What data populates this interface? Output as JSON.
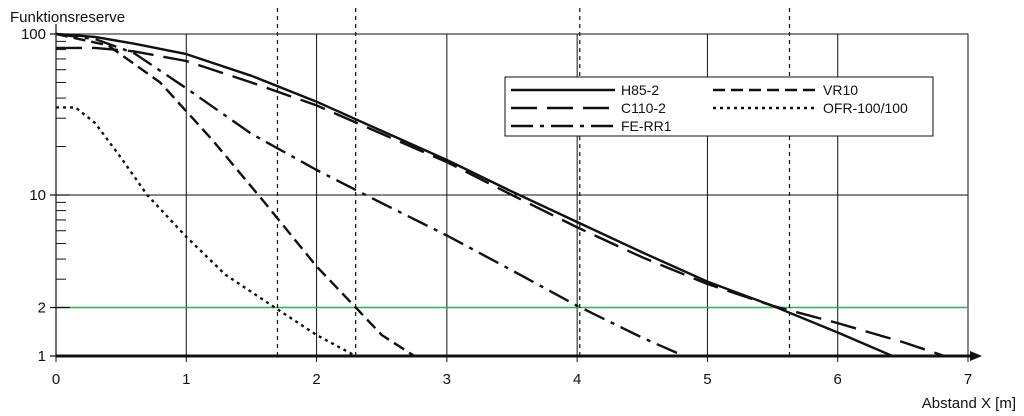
{
  "chart_data": {
    "type": "line",
    "ylabel": "Funktionsreserve",
    "xlabel": "Abstand X [m]",
    "xlim": [
      0,
      7
    ],
    "ylim": [
      1,
      100
    ],
    "y_scale": "log",
    "x_ticks": [
      0,
      1,
      2,
      3,
      4,
      5,
      6,
      7
    ],
    "x_tick_labels": [
      "0",
      "1",
      "2",
      "3",
      "4",
      "5",
      "6",
      "7"
    ],
    "y_ticks": [
      1,
      2,
      10,
      100
    ],
    "y_tick_labels": [
      "1",
      "2",
      "10",
      "100"
    ],
    "grid": true,
    "legend_position": "top-right",
    "reference_lines": [
      {
        "axis": "y",
        "value": 2,
        "color": "#2db24a",
        "style": "solid"
      },
      {
        "axis": "x",
        "value": 1.7,
        "color": "#111111",
        "style": "dotted"
      },
      {
        "axis": "x",
        "value": 2.3,
        "color": "#111111",
        "style": "dotted"
      },
      {
        "axis": "x",
        "value": 4.02,
        "color": "#111111",
        "style": "dotted"
      },
      {
        "axis": "x",
        "value": 5.63,
        "color": "#111111",
        "style": "dotted"
      }
    ],
    "series": [
      {
        "name": "H85-2",
        "style": "solid",
        "color": "#111111",
        "x": [
          0,
          0.3,
          0.6,
          1,
          1.5,
          2,
          2.5,
          3,
          3.5,
          4,
          4.5,
          5,
          5.5,
          6,
          6.42
        ],
        "y": [
          100,
          96,
          87,
          75,
          55,
          38,
          25,
          16.5,
          10.5,
          6.8,
          4.4,
          2.9,
          2.05,
          1.4,
          1
        ]
      },
      {
        "name": "VR10",
        "style": "dash",
        "color": "#111111",
        "x": [
          0,
          0.4,
          0.8,
          1.2,
          1.6,
          2,
          2.3,
          2.5,
          2.75
        ],
        "y": [
          100,
          85,
          50,
          22,
          9,
          3.6,
          2,
          1.35,
          1
        ]
      },
      {
        "name": "C110-2",
        "style": "longdash",
        "color": "#111111",
        "x": [
          0,
          0.3,
          0.6,
          1,
          1.5,
          2,
          2.5,
          3,
          3.5,
          4,
          4.5,
          5,
          5.5,
          6,
          6.5,
          6.82
        ],
        "y": [
          82,
          82,
          78,
          68,
          50,
          36,
          24,
          16,
          10,
          6.3,
          4.1,
          2.8,
          2.05,
          1.6,
          1.22,
          1
        ]
      },
      {
        "name": "OFR-100/100",
        "style": "dot",
        "color": "#111111",
        "x": [
          0,
          0.15,
          0.3,
          0.5,
          0.7,
          1,
          1.3,
          1.7,
          2,
          2.3
        ],
        "y": [
          35,
          35,
          28,
          17,
          10,
          5.5,
          3.2,
          1.95,
          1.35,
          1
        ]
      },
      {
        "name": "FE-RR1",
        "style": "dashdot",
        "color": "#111111",
        "x": [
          0,
          0.3,
          0.6,
          1,
          1.5,
          2,
          2.5,
          3,
          3.5,
          4,
          4.5,
          4.82
        ],
        "y": [
          100,
          93,
          76,
          46,
          24,
          14.3,
          8.9,
          5.6,
          3.4,
          2.05,
          1.3,
          1
        ]
      }
    ],
    "legend": [
      {
        "name": "H85-2",
        "style": "solid"
      },
      {
        "name": "VR10",
        "style": "dash"
      },
      {
        "name": "C110-2",
        "style": "longdash"
      },
      {
        "name": "OFR-100/100",
        "style": "dot"
      },
      {
        "name": "FE-RR1",
        "style": "dashdot"
      }
    ]
  }
}
